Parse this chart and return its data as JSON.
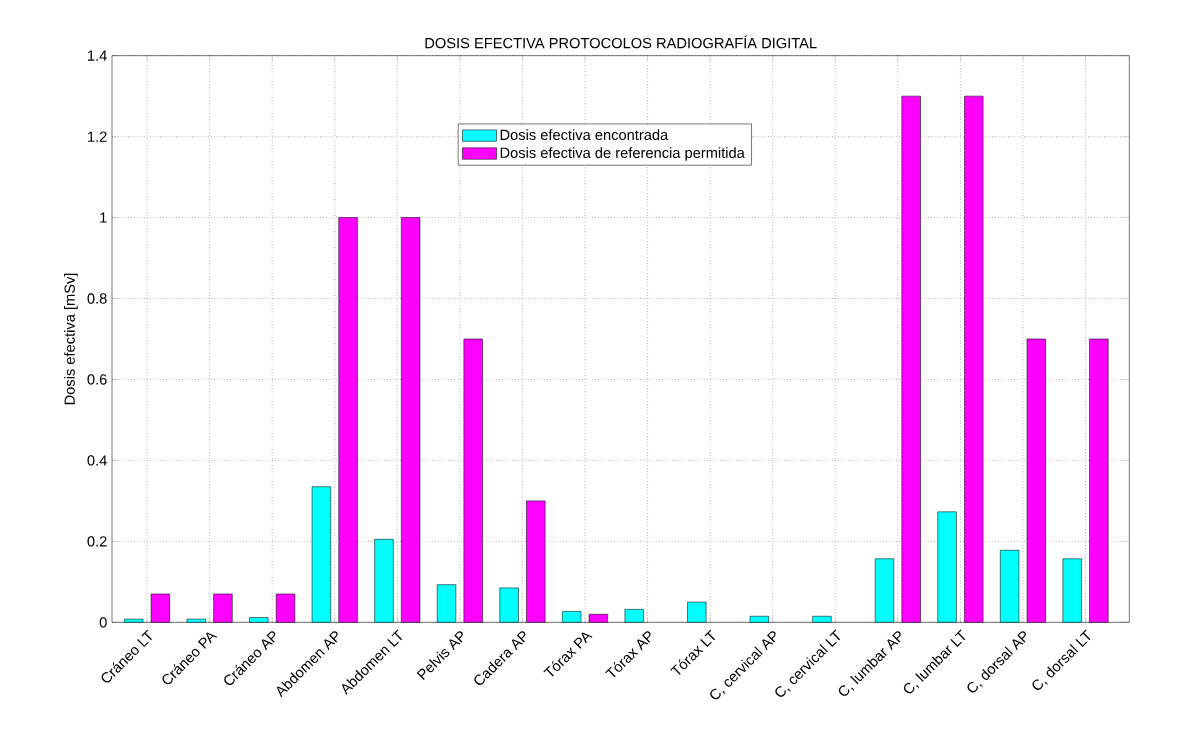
{
  "chart_data": {
    "type": "bar",
    "title": "DOSIS EFECTIVA PROTOCOLOS RADIOGRAFÍA DIGITAL",
    "ylabel": "Dosis efectiva [mSv]",
    "categories": [
      "Cráneo LT",
      "Cráneo PA",
      "Cráneo AP",
      "Abdomen AP",
      "Abdomen LT",
      "Pelvis AP",
      "Cadera AP",
      "Tórax PA",
      "Tórax AP",
      "Tórax LT",
      "C, cervical AP",
      "C, cervical LT",
      "C, lumbar AP",
      "C, lumbar LT",
      "C, dorsal AP",
      "C, dorsal LT"
    ],
    "series": [
      {
        "name": "Dosis efectiva encontrada",
        "color": "#00ffff",
        "values": [
          0.008,
          0.008,
          0.012,
          0.335,
          0.205,
          0.093,
          0.085,
          0.027,
          0.032,
          0.05,
          0.015,
          0.015,
          0.157,
          0.273,
          0.178,
          0.157
        ]
      },
      {
        "name": "Dosis efectiva de referencia permitida",
        "color": "#ff00ff",
        "values": [
          0.07,
          0.07,
          0.07,
          1.0,
          1.0,
          0.7,
          0.3,
          0.02,
          null,
          null,
          null,
          null,
          1.3,
          1.3,
          0.7,
          0.7
        ]
      }
    ],
    "ylim": [
      0,
      1.4
    ],
    "yticks": [
      0,
      0.2,
      0.4,
      0.6,
      0.8,
      1,
      1.2,
      1.4
    ],
    "grid": true,
    "legend": "top"
  }
}
